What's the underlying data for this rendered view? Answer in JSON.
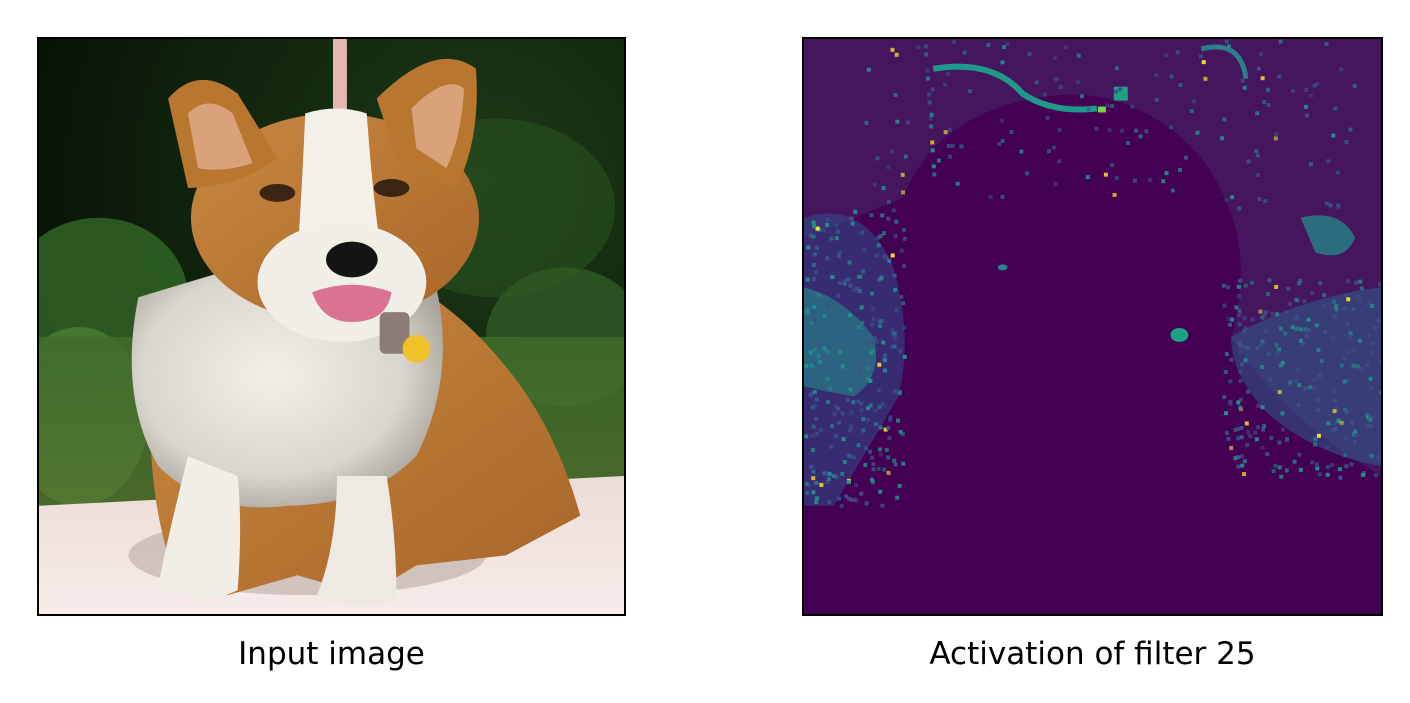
{
  "panels": [
    {
      "caption": "Input image",
      "content": "corgi-photo"
    },
    {
      "caption": "Activation of filter 25",
      "content": "activation-heatmap",
      "colormap": "viridis",
      "colors": {
        "low": "#440154",
        "mid": "#21918c",
        "high": "#fde725"
      }
    }
  ]
}
